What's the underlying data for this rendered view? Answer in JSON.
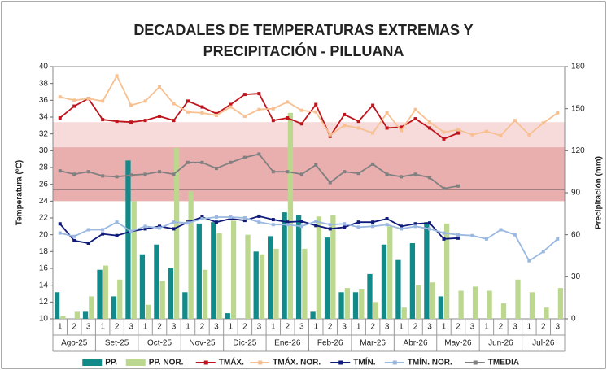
{
  "chart_data": {
    "type": "bar_line",
    "title": [
      "DECADALES DE TEMPERATURAS EXTREMAS Y",
      "PRECIPITACIÓN - PILLUANA"
    ],
    "ylabel": "Temperatura (°C)",
    "y2label": "Precipitación (mm)",
    "categories": [
      "1",
      "2",
      "3",
      "1",
      "2",
      "3",
      "1",
      "2",
      "3",
      "1",
      "2",
      "3",
      "1",
      "2",
      "3",
      "1",
      "2",
      "3",
      "1",
      "2",
      "3",
      "1",
      "2",
      "3",
      "1",
      "2",
      "3",
      "1",
      "2",
      "3",
      "1",
      "2",
      "3",
      "1",
      "2",
      "3"
    ],
    "month_groups": [
      "Ago-25",
      "Set-25",
      "Oct-25",
      "Nov-25",
      "Dic-25",
      "Ene-26",
      "Feb-26",
      "Mar-26",
      "Abr-26",
      "May-26",
      "Jun-26",
      "Jul-26"
    ],
    "ylim": [
      10,
      40
    ],
    "yticks": [
      10,
      12,
      14,
      16,
      18,
      20,
      22,
      24,
      26,
      28,
      30,
      32,
      34,
      36,
      38,
      40
    ],
    "y2lim": [
      0,
      180
    ],
    "y2ticks": [
      0,
      30,
      60,
      90,
      120,
      150,
      180
    ],
    "reference_bands": [
      [
        24,
        33.4
      ],
      [
        24,
        30.4
      ]
    ],
    "reference_line": 25.4,
    "series": [
      {
        "name": "PP.",
        "type": "bar",
        "axis": "y2",
        "color": "#138a8a",
        "values": [
          19,
          0,
          5,
          35,
          16,
          113,
          46,
          53,
          36,
          19,
          68,
          69,
          4,
          0,
          48,
          59,
          76,
          74,
          5,
          58,
          19,
          19,
          32,
          53,
          42,
          54,
          69,
          16,
          null,
          null,
          null,
          null,
          null,
          null,
          null,
          null
        ]
      },
      {
        "name": "PP. NOR.",
        "type": "bar",
        "axis": "y2",
        "color": "#bcd88f",
        "values": [
          2,
          5,
          16,
          38,
          28,
          84,
          10,
          27,
          122,
          91,
          35,
          61,
          70,
          60,
          46,
          50,
          147,
          50,
          73,
          74,
          22,
          21,
          12,
          66,
          8,
          24,
          26,
          68,
          20,
          23,
          20,
          11,
          28,
          19,
          8,
          22
        ]
      },
      {
        "name": "TMÁX.",
        "type": "line",
        "color": "#c0141c",
        "values": [
          33.9,
          35.3,
          36.2,
          33.7,
          33.5,
          33.4,
          33.6,
          34.1,
          33.6,
          35.9,
          35.2,
          34.4,
          35.5,
          36.7,
          36.8,
          33.6,
          33.9,
          33.2,
          35.5,
          31.7,
          34.3,
          33.5,
          35.4,
          32.7,
          32.8,
          33.8,
          32.7,
          31.4,
          32.1,
          null,
          null,
          null,
          null,
          null,
          null,
          null
        ]
      },
      {
        "name": "TMÁX. NOR.",
        "type": "line",
        "color": "#f8c090",
        "values": [
          36.4,
          36.0,
          36.2,
          35.9,
          38.9,
          35.4,
          35.9,
          37.6,
          35.6,
          34.6,
          34.5,
          34.2,
          35.2,
          34.1,
          34.9,
          35.0,
          35.8,
          34.8,
          34.6,
          31.9,
          33.0,
          32.7,
          32.1,
          34.5,
          32.4,
          34.9,
          33.4,
          32.2,
          32.5,
          31.9,
          32.3,
          31.8,
          33.6,
          31.9,
          33.3,
          34.5
        ]
      },
      {
        "name": "TMÍN.",
        "type": "line",
        "color": "#0f1a7a",
        "values": [
          21.3,
          19.3,
          19.0,
          20.1,
          19.9,
          20.4,
          20.7,
          21.0,
          20.7,
          21.5,
          22.1,
          21.5,
          21.9,
          21.7,
          22.2,
          21.8,
          21.5,
          21.6,
          21.1,
          20.7,
          20.9,
          21.5,
          21.5,
          21.9,
          21.0,
          21.3,
          21.4,
          19.5,
          19.6,
          null,
          null,
          null,
          null,
          null,
          null,
          null
        ]
      },
      {
        "name": "TMÍN. NOR.",
        "type": "line",
        "color": "#9ab8e0",
        "values": [
          20.2,
          19.8,
          20.6,
          20.6,
          21.5,
          20.4,
          21.0,
          20.8,
          21.5,
          21.4,
          21.9,
          22.1,
          22.1,
          22.0,
          21.5,
          21.2,
          21.2,
          21.0,
          21.6,
          21.2,
          21.3,
          20.9,
          21.0,
          21.2,
          20.7,
          21.0,
          20.7,
          20.2,
          20.0,
          19.9,
          19.5,
          20.6,
          20.0,
          16.9,
          18.0,
          19.5
        ]
      },
      {
        "name": "TMEDIA",
        "type": "line",
        "color": "#808080",
        "values": [
          27.6,
          27.2,
          27.5,
          27.0,
          26.9,
          27.1,
          27.2,
          27.5,
          27.2,
          28.6,
          28.6,
          27.9,
          28.6,
          29.2,
          29.6,
          27.5,
          27.5,
          27.2,
          28.3,
          26.2,
          27.5,
          27.3,
          28.4,
          27.2,
          26.9,
          27.2,
          26.8,
          25.5,
          25.8,
          null,
          null,
          null,
          null,
          null,
          null,
          null
        ]
      }
    ]
  }
}
